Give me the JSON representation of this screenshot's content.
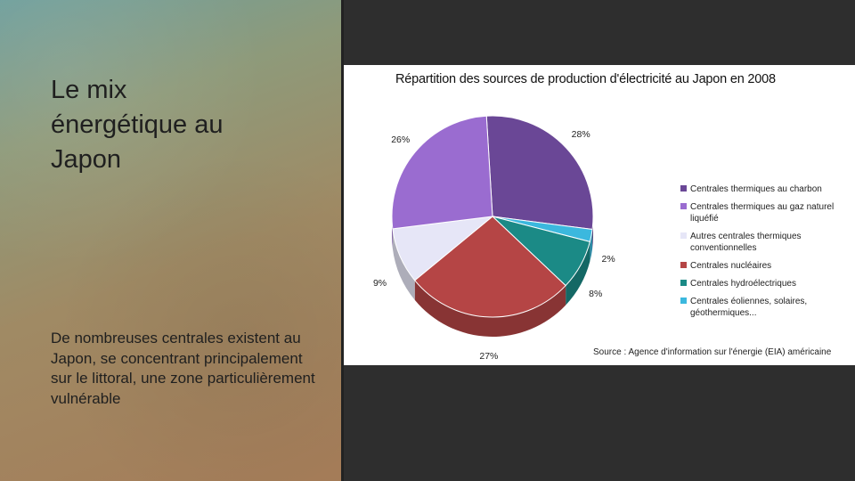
{
  "slide": {
    "title": "Le mix\nénergétique au\nJapon",
    "body": "De nombreuses centrales existent au Japon, se concentrant principalement sur le littoral, une zone particulièrement vulnérable"
  },
  "chart_data": {
    "type": "pie",
    "title": "Répartition des sources de production d'électricité au Japon en 2008",
    "source": "Source : Agence d'information sur l'énergie (EIA) américaine",
    "legend_position": "right",
    "slices": [
      {
        "label": "Centrales thermiques au charbon",
        "value": 28,
        "value_label": "28%",
        "color": "#6a4796"
      },
      {
        "label": "Centrales thermiques au gaz naturel liquéfié",
        "value": 26,
        "value_label": "26%",
        "color": "#9a6cd0"
      },
      {
        "label": "Autres centrales thermiques conventionnelles",
        "value": 9,
        "value_label": "9%",
        "color": "#e6e6f7"
      },
      {
        "label": "Centrales nucléaires",
        "value": 27,
        "value_label": "27%",
        "color": "#b54545"
      },
      {
        "label": "Centrales hydroélectriques",
        "value": 8,
        "value_label": "8%",
        "color": "#1b8a86"
      },
      {
        "label": "Centrales éoliennes, solaires, géothermiques...",
        "value": 2,
        "value_label": "2%",
        "color": "#3bb8de"
      }
    ]
  }
}
